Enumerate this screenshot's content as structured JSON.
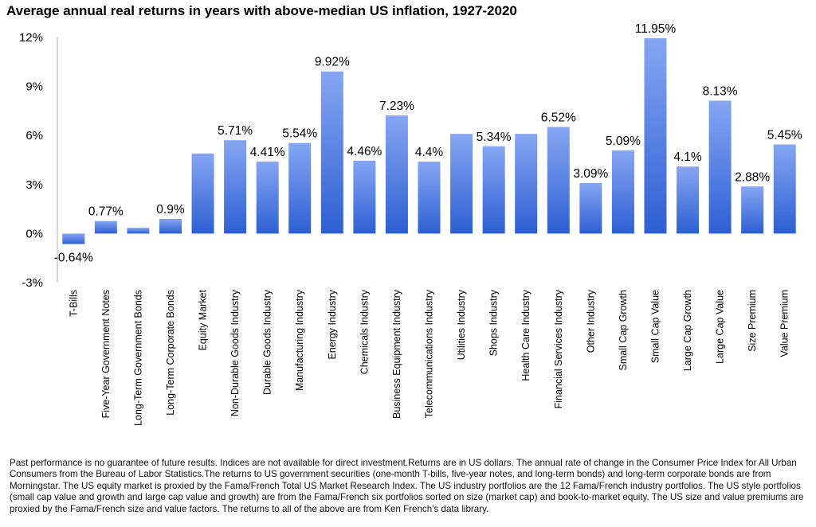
{
  "title": "Average annual real returns in years with above-median US inflation, 1927-2020",
  "footnote": "Past performance is no guarantee of future results. Indices are not available for direct investment.Returns are in US dollars. The annual rate of change in the Consumer Price Index for All Urban Consumers from the Bureau of Labor Statistics.The returns to US government securities (one-month T-bills, five-year notes, and long-term bonds) and long-term corporate bonds are from Morningstar. The US equity market is proxied by the Fama/French Total US Market Research Index. The US industry portfolios are the 12 Fama/French industry portfolios. The US style portfolios (small cap value and growth and large cap value and growth) are from the Fama/French six portfolios sorted on size (market cap) and book-to-market equity. The US size and value premiums are proxied by the Fama/French size and value factors. The returns to all of the above are from Ken French’s data library.",
  "colors": {
    "bar_top": "#86a6f2",
    "bar_bottom": "#2d5fd3",
    "axis": "#b0b0b0"
  },
  "chart_data": {
    "type": "bar",
    "title": "Average annual real returns in years with above-median US inflation, 1927-2020",
    "ylim": [
      -3,
      12
    ],
    "yticks": [
      -3,
      0,
      3,
      6,
      9,
      12
    ],
    "ytick_labels": [
      "-3%",
      "0%",
      "3%",
      "6%",
      "9%",
      "12%"
    ],
    "grid": false,
    "categories": [
      "T-Bills",
      "Five-Year Government Notes",
      "Long-Term Government Bonds",
      "Long-Term Corporate Bonds",
      "Equity Market",
      "Non-Durable Goods Industry",
      "Durable Goods Industry",
      "Manufacturing Industry",
      "Energy Industry",
      "Chemicals Industry",
      "Business Equipment Industry",
      "Telecommunications Industry",
      "Utilities Industry",
      "Shops Industry",
      "Health Care Industry",
      "Financial Services Industry",
      "Other Industry",
      "Small Cap Growth",
      "Small Cap Value",
      "Large Cap Growth",
      "Large Cap Value",
      "Size Premium",
      "Value Premium"
    ],
    "values": [
      -0.64,
      0.77,
      0.35,
      0.9,
      4.9,
      5.71,
      4.41,
      5.54,
      9.92,
      4.46,
      7.23,
      4.4,
      6.1,
      5.34,
      6.1,
      6.52,
      3.09,
      5.09,
      11.95,
      4.1,
      8.13,
      2.88,
      5.45
    ],
    "data_labels": [
      "-0.64%",
      "0.77%",
      "",
      "0.9%",
      "",
      "5.71%",
      "4.41%",
      "5.54%",
      "9.92%",
      "4.46%",
      "7.23%",
      "4.4%",
      "",
      "5.34%",
      "",
      "6.52%",
      "3.09%",
      "5.09%",
      "11.95%",
      "4.1%",
      "8.13%",
      "2.88%",
      "5.45%"
    ]
  }
}
